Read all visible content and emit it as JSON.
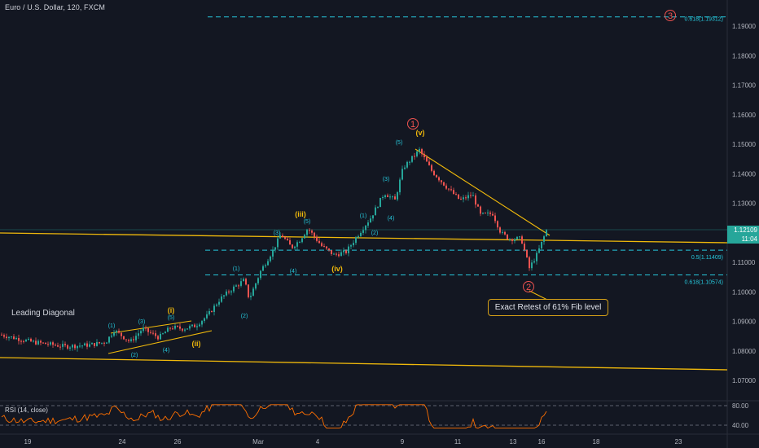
{
  "title": "Euro / U.S. Dollar, 120, FXCM",
  "colors": {
    "background": "#131722",
    "up": "#26a69a",
    "down": "#ef5350",
    "trendline": "#f0b90b",
    "fib": "#26c6da",
    "wave_label_primary": "#ef5350",
    "wave_label_minor": "#26c6da",
    "wave_label_intermediate": "#f0b90b",
    "rsi_line": "#ff6f00"
  },
  "callout_text": "Exact Retest of 61% Fib level",
  "leading_diagonal_label": "Leading Diagonal",
  "rsi_label": "RSI (14, close)",
  "price_labels": {
    "current": "1.12109",
    "timer": "11:04"
  },
  "chart_data": {
    "type": "candlestick",
    "title": "Euro / U.S. Dollar, 120, FXCM",
    "y_axis": {
      "ticks": [
        "1.19000",
        "1.18000",
        "1.17000",
        "1.16000",
        "1.15000",
        "1.14000",
        "1.13000",
        "1.12000",
        "1.11000",
        "1.10000",
        "1.09000",
        "1.08000",
        "1.07000"
      ],
      "range": [
        1.066,
        1.1968
      ]
    },
    "x_axis": {
      "ticks": [
        "19",
        "24",
        "26",
        "Mar",
        "4",
        "9",
        "11",
        "13",
        "16",
        "18",
        "23"
      ]
    },
    "fib_levels": [
      {
        "label": "0.618(1.19312)",
        "value": 1.19312
      },
      {
        "label": "0.5(1.11409)",
        "value": 1.11409
      },
      {
        "label": "0.618(1.10574)",
        "value": 1.10574
      }
    ],
    "wave_labels": [
      {
        "text": "1",
        "style": "primary"
      },
      {
        "text": "2",
        "style": "primary"
      },
      {
        "text": "3",
        "style": "primary"
      },
      {
        "text": "(v)",
        "style": "intermediate"
      },
      {
        "text": "(iii)",
        "style": "intermediate"
      },
      {
        "text": "(iv)",
        "style": "intermediate"
      },
      {
        "text": "(i)",
        "style": "intermediate"
      },
      {
        "text": "(ii)",
        "style": "intermediate"
      },
      {
        "text": "(1)",
        "style": "minor"
      },
      {
        "text": "(2)",
        "style": "minor"
      },
      {
        "text": "(3)",
        "style": "minor"
      },
      {
        "text": "(4)",
        "style": "minor"
      },
      {
        "text": "(5)",
        "style": "minor"
      }
    ],
    "rsi": {
      "levels": [
        "80.00",
        "40.00"
      ]
    }
  }
}
